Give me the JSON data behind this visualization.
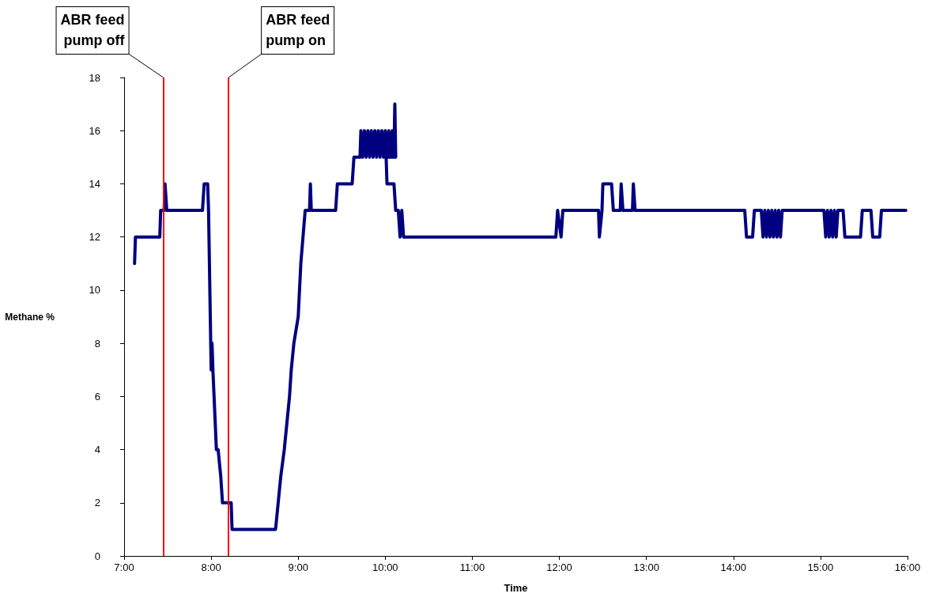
{
  "chart_data": {
    "type": "line",
    "xlabel": "Time",
    "ylabel": "Methane %",
    "xlim": [
      7,
      16
    ],
    "xticks": [
      {
        "value": 7,
        "label": "7:00"
      },
      {
        "value": 8,
        "label": "8:00"
      },
      {
        "value": 9,
        "label": "9:00"
      },
      {
        "value": 10,
        "label": "10:00"
      },
      {
        "value": 11,
        "label": "11:00"
      },
      {
        "value": 12,
        "label": "12:00"
      },
      {
        "value": 13,
        "label": "13:00"
      },
      {
        "value": 14,
        "label": "14:00"
      },
      {
        "value": 15,
        "label": "15:00"
      },
      {
        "value": 16,
        "label": "16:00"
      }
    ],
    "ylim": [
      0,
      18
    ],
    "yticks": [
      0,
      2,
      4,
      6,
      8,
      10,
      12,
      14,
      16,
      18
    ],
    "grid": false,
    "marker": "none",
    "line_style": "solid",
    "ref_lines": [
      {
        "axis": "x",
        "value": 7.45,
        "label": "ABR feed\npump off",
        "color": "#ff0000"
      },
      {
        "axis": "x",
        "value": 8.2,
        "label": "ABR feed\npump on",
        "color": "#ff0000"
      }
    ],
    "series": [
      {
        "color": "#000080",
        "x": [
          7.12,
          7.13,
          7.41,
          7.42,
          7.46,
          7.47,
          7.49,
          7.9,
          7.92,
          7.96,
          7.97,
          7.99,
          8.0,
          8.01,
          8.02,
          8.06,
          8.08,
          8.11,
          8.13,
          8.23,
          8.24,
          8.74,
          8.77,
          8.8,
          8.84,
          8.87,
          8.9,
          8.92,
          8.95,
          9.0,
          9.03,
          9.08,
          9.13,
          9.14,
          9.15,
          9.43,
          9.45,
          9.62,
          9.64,
          9.71,
          9.72,
          9.74,
          9.76,
          9.78,
          9.8,
          9.82,
          9.84,
          9.86,
          9.88,
          9.9,
          9.92,
          9.94,
          9.96,
          9.98,
          10.0,
          10.02,
          10.04,
          10.06,
          10.08,
          10.1,
          10.11,
          10.12,
          10.01,
          10.02,
          10.1,
          10.12,
          10.15,
          10.17,
          10.19,
          10.21,
          11.96,
          11.98,
          12.02,
          12.04,
          12.45,
          12.46,
          12.49,
          12.5,
          12.6,
          12.62,
          12.7,
          12.71,
          12.73,
          12.84,
          12.85,
          12.87,
          14.13,
          14.15,
          14.22,
          14.24,
          14.32,
          14.34,
          14.36,
          14.38,
          14.4,
          14.42,
          14.44,
          14.46,
          14.48,
          14.5,
          14.52,
          14.54,
          14.56,
          14.58,
          15.04,
          15.06,
          15.08,
          15.1,
          15.12,
          15.14,
          15.16,
          15.18,
          15.2,
          15.26,
          15.28,
          15.46,
          15.48,
          15.58,
          15.6,
          15.68,
          15.7,
          15.98
        ],
        "values": [
          11,
          12,
          12,
          13,
          13,
          14,
          13,
          13,
          14,
          14,
          13,
          9,
          7,
          8,
          7,
          4,
          4,
          3,
          2,
          2,
          1,
          1,
          2,
          3,
          4,
          5,
          6,
          7,
          8,
          9,
          11,
          13,
          13,
          14,
          13,
          13,
          14,
          14,
          15,
          15,
          16,
          15,
          16,
          15,
          16,
          15,
          16,
          15,
          16,
          15,
          16,
          15,
          16,
          15,
          16,
          15,
          16,
          15,
          16,
          15,
          17,
          15,
          15,
          14,
          14,
          13,
          13,
          12,
          13,
          12,
          12,
          13,
          12,
          13,
          13,
          12,
          13,
          14,
          14,
          13,
          13,
          14,
          13,
          13,
          14,
          13,
          13,
          12,
          12,
          13,
          13,
          12,
          13,
          12,
          13,
          12,
          13,
          12,
          13,
          12,
          13,
          12,
          13,
          13,
          13,
          12,
          13,
          12,
          13,
          12,
          13,
          12,
          13,
          13,
          12,
          12,
          13,
          13,
          12,
          12,
          13,
          13
        ]
      }
    ]
  }
}
